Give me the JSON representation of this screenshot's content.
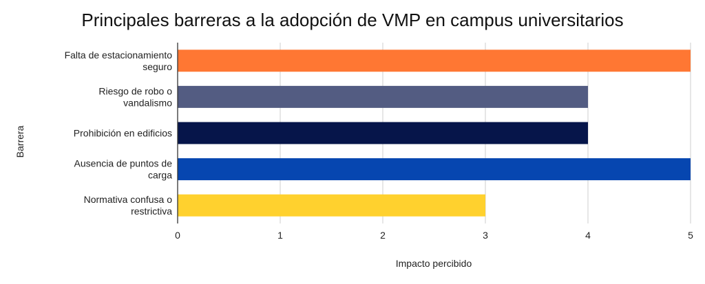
{
  "chart_data": {
    "type": "bar",
    "orientation": "horizontal",
    "title": "Principales barreras a la adopción de VMP en campus universitarios",
    "xlabel": "Impacto percibido",
    "ylabel": "Barrera",
    "categories": [
      [
        "Falta de estacionamiento",
        "seguro"
      ],
      [
        "Riesgo de robo o",
        "vandalismo"
      ],
      [
        "Prohibición en edificios"
      ],
      [
        "Ausencia de puntos de",
        "carga"
      ],
      [
        "Normativa confusa o",
        "restrictiva"
      ]
    ],
    "values": [
      5,
      4,
      4,
      5,
      3
    ],
    "colors": [
      "#FF7733",
      "#535C82",
      "#06154A",
      "#0646B0",
      "#FFD12E"
    ],
    "xlim": [
      0,
      5
    ],
    "xticks": [
      "0",
      "1",
      "2",
      "3",
      "4",
      "5"
    ],
    "grid": true,
    "legend": "none"
  }
}
